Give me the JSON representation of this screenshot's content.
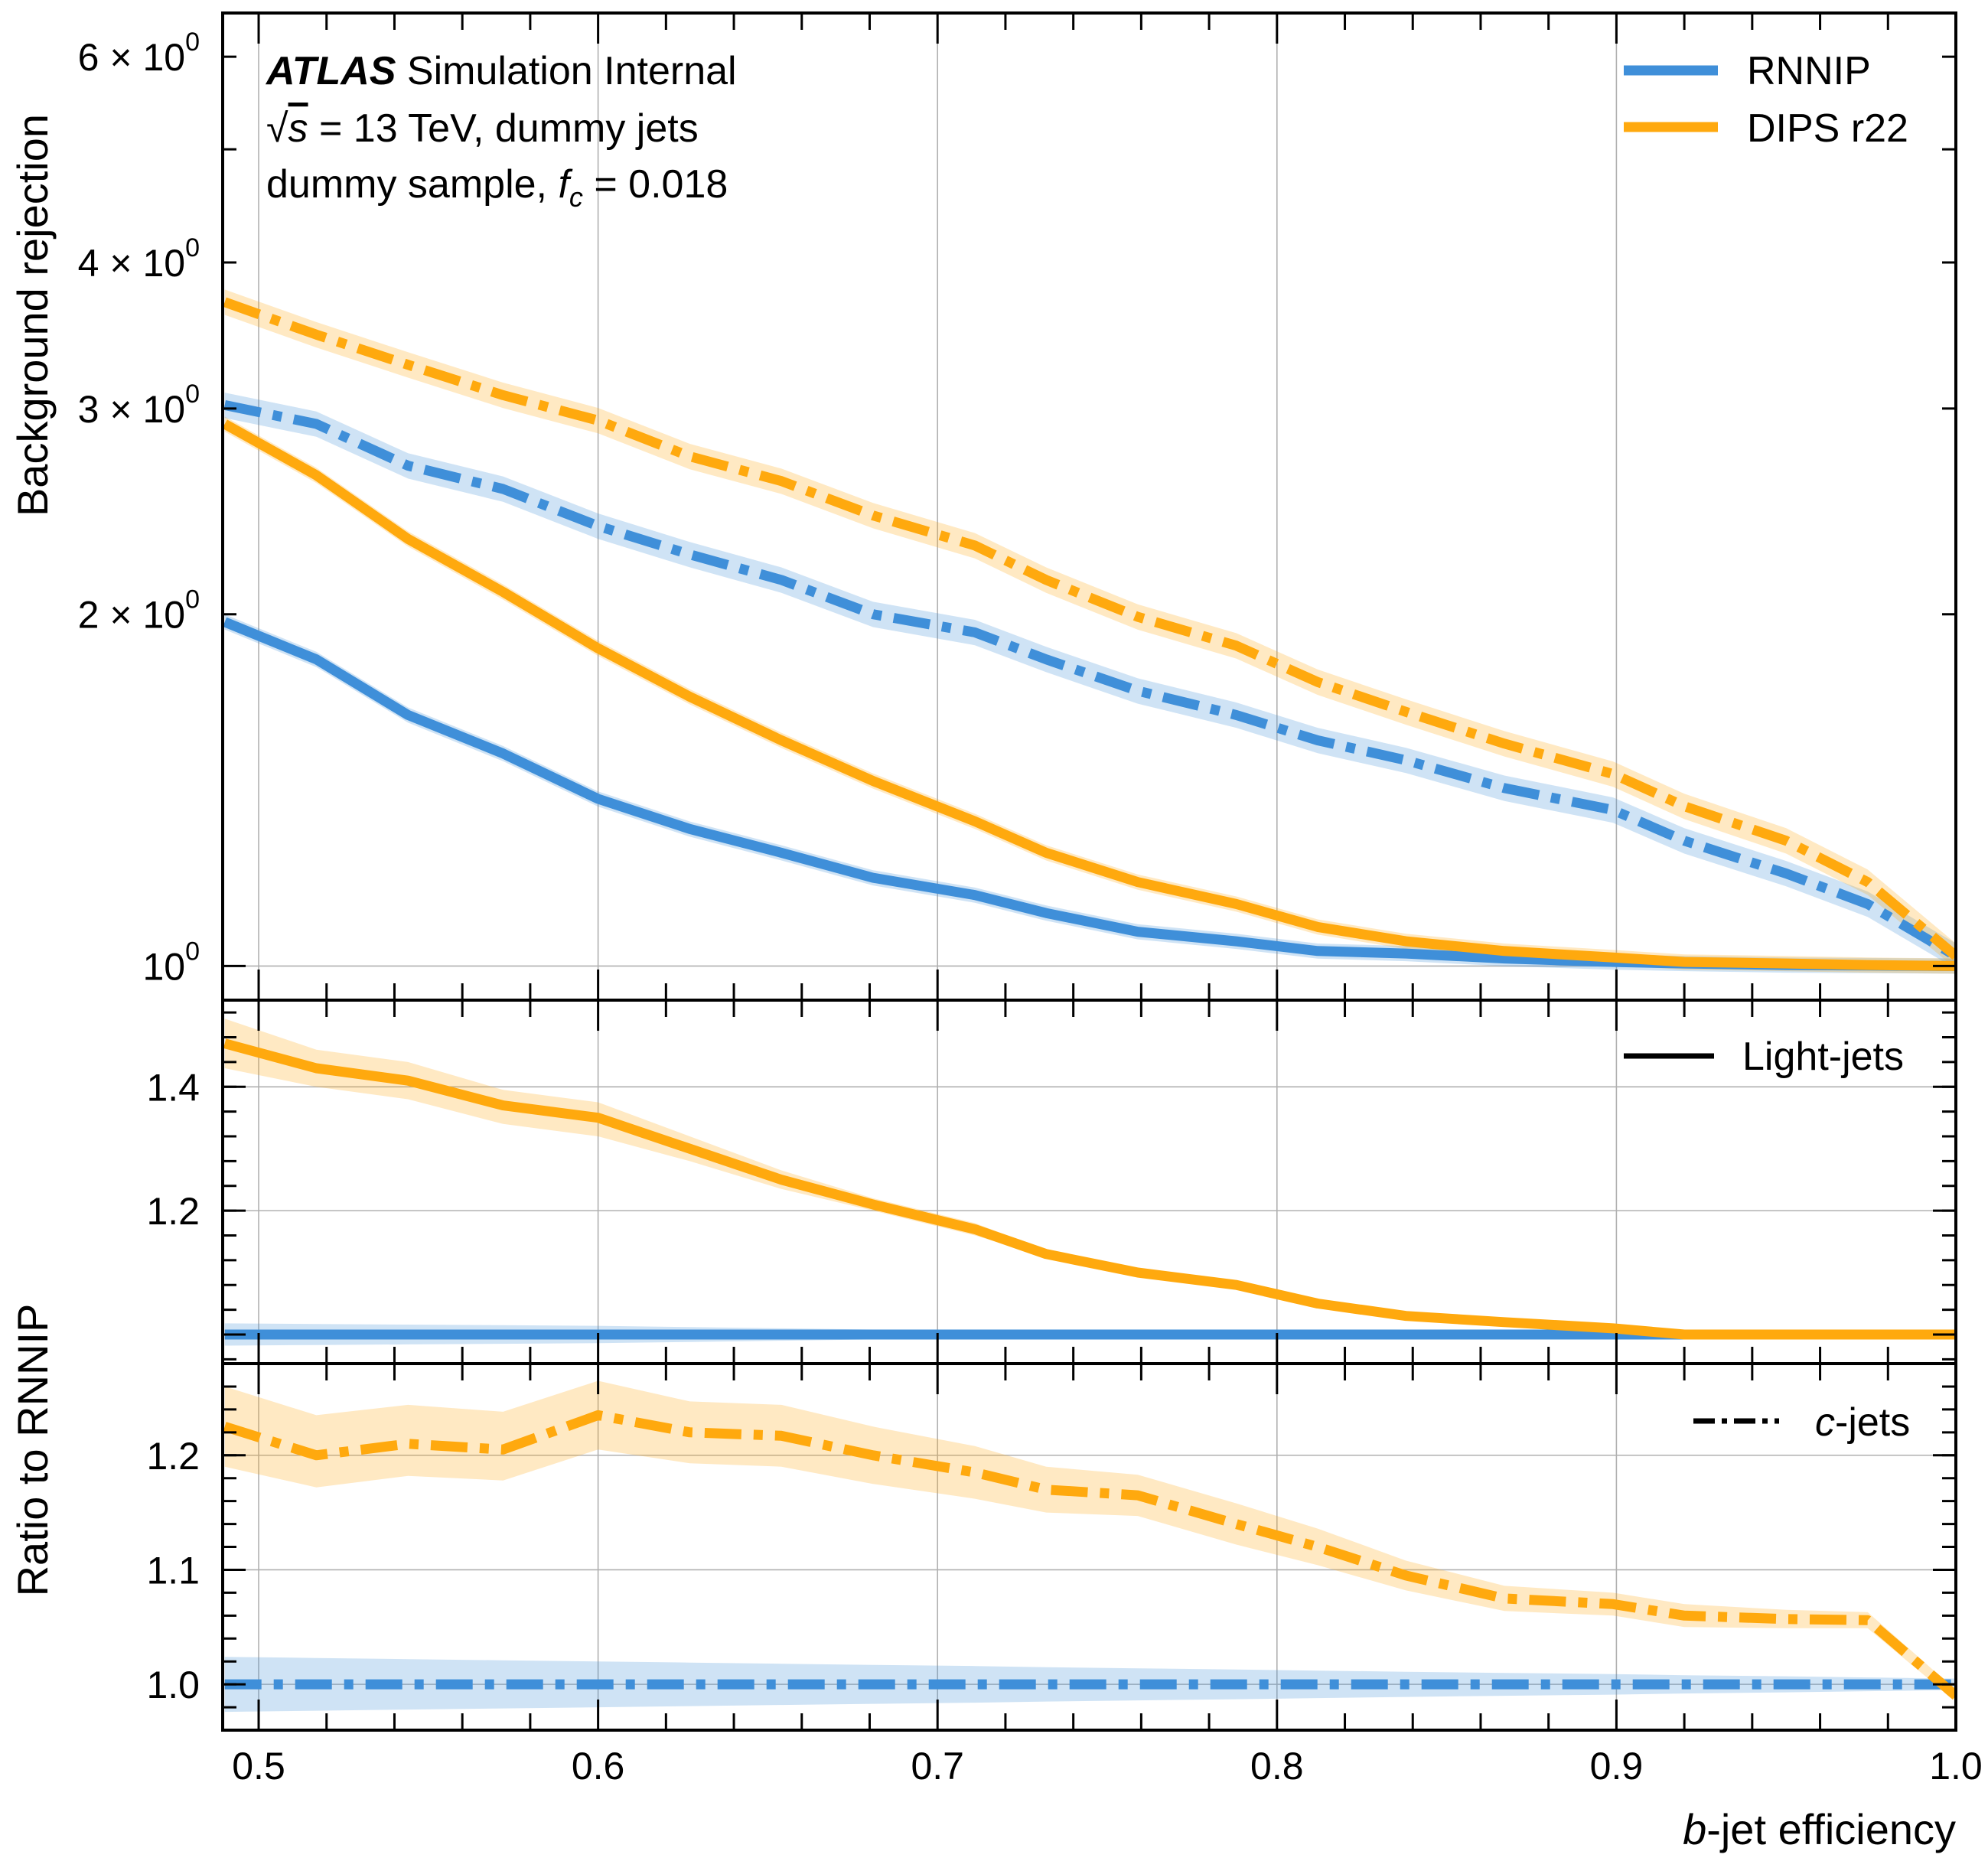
{
  "chart_data": [
    {
      "panel": "main",
      "type": "line",
      "title": "",
      "ylabel": "Background rejection",
      "xlabel": "",
      "yscale": "log",
      "ylim": [
        0.935,
        6.54
      ],
      "xlim": [
        0.4894,
        1.0
      ],
      "grid": true,
      "ytick_labels": [
        {
          "value": 1,
          "label": "10",
          "sup": "0"
        },
        {
          "value": 2,
          "label": "2 × 10",
          "sup": "0"
        },
        {
          "value": 3,
          "label": "3 × 10",
          "sup": "0"
        },
        {
          "value": 4,
          "label": "4 × 10",
          "sup": "0"
        },
        {
          "value": 6,
          "label": "6 × 10",
          "sup": "0"
        }
      ],
      "annotations": {
        "atlas": "ATLAS",
        "atlas_suffix": " Simulation Internal",
        "line2_sqrt": "√",
        "line2_s": "s",
        "line2_rest": " = 13 TeV, dummy jets",
        "line3_pre": "dummy sample, ",
        "line3_f": "f",
        "line3_sub": "c",
        "line3_rest": " = 0.018"
      },
      "legend": {
        "placement": "top-right",
        "entries": [
          {
            "name": "RNNIP",
            "color": "#3f8fd9"
          },
          {
            "name": "DIPS r22",
            "color": "#ffa90e"
          }
        ]
      },
      "x": [
        0.49,
        0.517,
        0.544,
        0.572,
        0.6,
        0.627,
        0.654,
        0.681,
        0.711,
        0.732,
        0.759,
        0.788,
        0.812,
        0.838,
        0.867,
        0.899,
        0.92,
        0.95,
        0.974,
        1.0
      ],
      "series": [
        {
          "name": "RNNIP light-jets",
          "model": "RNNIP",
          "flavour": "light",
          "style": "solid",
          "color": "#3f8fd9",
          "values": [
            1.97,
            1.83,
            1.64,
            1.52,
            1.39,
            1.31,
            1.25,
            1.19,
            1.15,
            1.11,
            1.07,
            1.05,
            1.03,
            1.025,
            1.015,
            1.008,
            1.005,
            1.002,
            1.001,
            1.0
          ],
          "band": 0.015
        },
        {
          "name": "DIPS r22 light-jets",
          "model": "DIPS r22",
          "flavour": "light",
          "style": "solid",
          "color": "#ffa90e",
          "values": [
            2.91,
            2.63,
            2.32,
            2.09,
            1.87,
            1.7,
            1.56,
            1.44,
            1.33,
            1.25,
            1.18,
            1.13,
            1.08,
            1.05,
            1.03,
            1.017,
            1.008,
            1.005,
            1.002,
            1.0
          ],
          "band": 0.015
        },
        {
          "name": "RNNIP c-jets",
          "model": "RNNIP",
          "flavour": "c",
          "style": "dashdot",
          "color": "#3f8fd9",
          "values": [
            3.02,
            2.91,
            2.68,
            2.56,
            2.38,
            2.25,
            2.14,
            2.0,
            1.93,
            1.83,
            1.72,
            1.64,
            1.56,
            1.5,
            1.42,
            1.36,
            1.28,
            1.2,
            1.13,
            1.02
          ],
          "band": 0.025
        },
        {
          "name": "DIPS r22 c-jets",
          "model": "DIPS r22",
          "flavour": "c",
          "style": "dashdot",
          "color": "#ffa90e",
          "values": [
            3.7,
            3.47,
            3.27,
            3.08,
            2.93,
            2.73,
            2.6,
            2.43,
            2.29,
            2.14,
            1.99,
            1.88,
            1.75,
            1.65,
            1.55,
            1.46,
            1.37,
            1.28,
            1.18,
            1.02
          ],
          "band": 0.025
        }
      ]
    },
    {
      "panel": "ratio-light",
      "type": "line",
      "ylabel": "",
      "ylim": [
        0.953,
        1.54
      ],
      "xlim": [
        0.4894,
        1.0
      ],
      "grid": true,
      "ytick_labels": [
        {
          "value": 1.2,
          "label": "1.2"
        },
        {
          "value": 1.4,
          "label": "1.4"
        }
      ],
      "legend": {
        "placement": "top-right",
        "entries": [
          {
            "name": "Light-jets",
            "style": "solid",
            "color": "#000000"
          }
        ]
      },
      "x": [
        0.49,
        0.517,
        0.544,
        0.572,
        0.6,
        0.627,
        0.654,
        0.681,
        0.711,
        0.732,
        0.759,
        0.788,
        0.812,
        0.838,
        0.867,
        0.899,
        0.92,
        0.95,
        0.974,
        1.0
      ],
      "series": [
        {
          "name": "RNNIP",
          "style": "solid",
          "color": "#3f8fd9",
          "values": [
            1.0,
            1.0,
            1.0,
            1.0,
            1.0,
            1.0,
            1.0,
            1.0,
            1.0,
            1.0,
            1.0,
            1.0,
            1.0,
            1.0,
            1.0,
            1.0,
            1.0,
            1.0,
            1.0,
            1.0
          ],
          "band_lo": [
            0.982,
            0.983,
            0.984,
            0.985,
            0.986,
            0.988,
            0.99,
            0.992,
            0.994,
            0.995,
            0.996,
            0.997,
            0.998,
            0.999,
            0.999,
            1.0,
            1.0,
            1.0,
            1.0,
            1.0
          ],
          "band_hi": [
            1.018,
            1.017,
            1.016,
            1.015,
            1.014,
            1.012,
            1.01,
            1.008,
            1.006,
            1.005,
            1.004,
            1.003,
            1.002,
            1.001,
            1.001,
            1.0,
            1.0,
            1.0,
            1.0,
            1.0
          ]
        },
        {
          "name": "DIPS r22",
          "style": "solid",
          "color": "#ffa90e",
          "values": [
            1.47,
            1.43,
            1.41,
            1.37,
            1.35,
            1.3,
            1.25,
            1.21,
            1.17,
            1.13,
            1.1,
            1.08,
            1.05,
            1.03,
            1.02,
            1.01,
            1.0,
            1.0,
            1.0,
            1.0
          ],
          "band_lo": [
            1.43,
            1.4,
            1.38,
            1.34,
            1.32,
            1.28,
            1.235,
            1.2,
            1.16,
            1.125,
            1.095,
            1.077,
            1.048,
            1.029,
            1.019,
            1.009,
            1.0,
            1.0,
            1.0,
            1.0
          ],
          "band_hi": [
            1.51,
            1.46,
            1.44,
            1.395,
            1.375,
            1.32,
            1.265,
            1.22,
            1.18,
            1.135,
            1.105,
            1.083,
            1.052,
            1.031,
            1.021,
            1.011,
            1.0,
            1.0,
            1.0,
            1.0
          ]
        }
      ]
    },
    {
      "panel": "ratio-c",
      "type": "line",
      "ylabel": "Ratio to RNNIP",
      "xlabel_prefix": "b",
      "xlabel_rest": "-jet efficiency",
      "ylim": [
        0.96,
        1.28
      ],
      "xlim": [
        0.4894,
        1.0
      ],
      "grid": true,
      "ytick_labels": [
        {
          "value": 1.0,
          "label": "1.0"
        },
        {
          "value": 1.1,
          "label": "1.1"
        },
        {
          "value": 1.2,
          "label": "1.2"
        }
      ],
      "xtick_labels": [
        {
          "value": 0.5,
          "label": "0.5"
        },
        {
          "value": 0.6,
          "label": "0.6"
        },
        {
          "value": 0.7,
          "label": "0.7"
        },
        {
          "value": 0.8,
          "label": "0.8"
        },
        {
          "value": 0.9,
          "label": "0.9"
        },
        {
          "value": 1.0,
          "label": "1.0"
        }
      ],
      "legend": {
        "placement": "top-right",
        "entries": [
          {
            "name_italic": "c",
            "name_rest": "-jets",
            "style": "dashdot",
            "color": "#000000"
          }
        ]
      },
      "x": [
        0.49,
        0.517,
        0.544,
        0.572,
        0.6,
        0.627,
        0.654,
        0.681,
        0.711,
        0.732,
        0.759,
        0.788,
        0.812,
        0.838,
        0.867,
        0.899,
        0.92,
        0.95,
        0.974,
        1.0
      ],
      "series": [
        {
          "name": "RNNIP",
          "style": "dashdot",
          "color": "#3f8fd9",
          "values": [
            1.0,
            1.0,
            1.0,
            1.0,
            1.0,
            1.0,
            1.0,
            1.0,
            1.0,
            1.0,
            1.0,
            1.0,
            1.0,
            1.0,
            1.0,
            1.0,
            1.0,
            1.0,
            1.0,
            1.0
          ],
          "band_lo": [
            0.976,
            0.977,
            0.978,
            0.979,
            0.98,
            0.981,
            0.982,
            0.983,
            0.984,
            0.985,
            0.986,
            0.987,
            0.988,
            0.989,
            0.99,
            0.991,
            0.992,
            0.993,
            0.994,
            0.995
          ],
          "band_hi": [
            1.024,
            1.023,
            1.022,
            1.021,
            1.02,
            1.019,
            1.018,
            1.017,
            1.016,
            1.015,
            1.014,
            1.013,
            1.012,
            1.011,
            1.01,
            1.009,
            1.008,
            1.007,
            1.006,
            1.005
          ]
        },
        {
          "name": "DIPS r22",
          "style": "dashdot",
          "color": "#ffa90e",
          "values": [
            1.225,
            1.2,
            1.21,
            1.205,
            1.235,
            1.22,
            1.217,
            1.2,
            1.185,
            1.17,
            1.165,
            1.14,
            1.12,
            1.095,
            1.075,
            1.07,
            1.06,
            1.057,
            1.056,
            0.99
          ],
          "band_lo": [
            1.19,
            1.172,
            1.182,
            1.178,
            1.205,
            1.193,
            1.19,
            1.175,
            1.162,
            1.15,
            1.147,
            1.122,
            1.104,
            1.082,
            1.064,
            1.06,
            1.05,
            1.049,
            1.049,
            0.985
          ],
          "band_hi": [
            1.26,
            1.235,
            1.244,
            1.238,
            1.265,
            1.247,
            1.244,
            1.225,
            1.208,
            1.19,
            1.183,
            1.158,
            1.136,
            1.108,
            1.086,
            1.08,
            1.07,
            1.065,
            1.063,
            0.995
          ]
        }
      ]
    }
  ]
}
